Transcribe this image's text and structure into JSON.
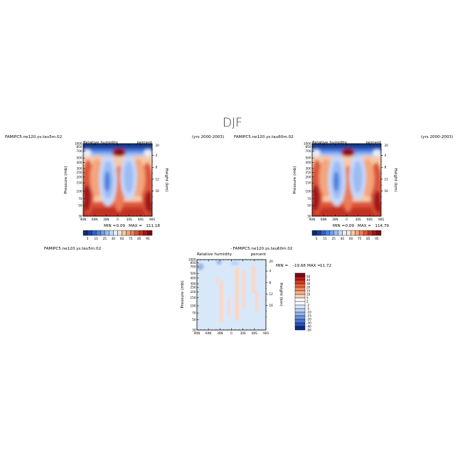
{
  "figure": {
    "title": "DJF"
  },
  "chart_data": [
    {
      "type": "heatmap",
      "id": "case1",
      "case_label": "FAMIPC5.ne120.ys.tau5m.02",
      "period": "(yrs 2000-2003)",
      "title": "Relative humidity",
      "units": "percent",
      "ylabel": "Pressure (mb)",
      "ylabel_right": "Height (km)",
      "x_ticks": [
        "90N",
        "60N",
        "30N",
        "0",
        "30S",
        "60S",
        "90S"
      ],
      "y_ticks": [
        "1000",
        "850",
        "700",
        "500",
        "400",
        "300",
        "250",
        "200",
        "150",
        "100",
        "70",
        "50",
        "30"
      ],
      "y_ticks_right": [
        "16",
        "12",
        "8",
        "4"
      ],
      "y_ticks_right_hidden": [
        "20"
      ],
      "xlim": [
        -90,
        90
      ],
      "ylim_mb": [
        1000,
        30
      ],
      "min_label": "MIN =",
      "min": "0.09",
      "max_label": "MAX =",
      "max": "111.18",
      "colorbar_levels": [
        "5",
        "15",
        "25",
        "40",
        "60",
        "75",
        "85",
        "95"
      ]
    },
    {
      "type": "heatmap",
      "id": "case2",
      "case_label": "FAMIPC5.ne120.ys.tau60m.02",
      "period": "(yrs 2000-2003)",
      "title": "Relative humidity",
      "units": "percent",
      "ylabel": "Pressure (mb)",
      "ylabel_right": "Height (km)",
      "x_ticks": [
        "90N",
        "60N",
        "30N",
        "0",
        "30S",
        "60S",
        "90S"
      ],
      "y_ticks": [
        "1000",
        "850",
        "700",
        "500",
        "400",
        "300",
        "250",
        "200",
        "150",
        "100",
        "70",
        "50",
        "30"
      ],
      "y_ticks_right": [
        "16",
        "12",
        "8",
        "4"
      ],
      "y_ticks_right_hidden": [
        "20"
      ],
      "xlim": [
        -90,
        90
      ],
      "ylim_mb": [
        1000,
        30
      ],
      "min_label": "MIN =",
      "min": "0.09",
      "max_label": "MAX =",
      "max": "114.79",
      "colorbar_levels": [
        "5",
        "15",
        "25",
        "40",
        "60",
        "75",
        "85",
        "95"
      ]
    },
    {
      "type": "heatmap",
      "id": "diff",
      "case_label": "FAMIPC5.ne120.ys.tau5m.02",
      "diff_label": "- FAMIPC5.ne120.ys.tau60m.02",
      "title": "Relative humidity",
      "units": "percent",
      "ylabel": "Pressure (mb)",
      "ylabel_right": "Height (km)",
      "x_ticks": [
        "90N",
        "60N",
        "30N",
        "0",
        "30S",
        "60S",
        "90S"
      ],
      "y_ticks": [
        "1000",
        "850",
        "700",
        "500",
        "400",
        "300",
        "250",
        "200",
        "150",
        "100",
        "70",
        "50",
        "30"
      ],
      "y_ticks_right": [
        "16",
        "12",
        "8",
        "4"
      ],
      "y_ticks_right_hidden": [
        "20"
      ],
      "xlim": [
        -90,
        90
      ],
      "ylim_mb": [
        1000,
        30
      ],
      "min_label": "MIN =",
      "min": "-19.68",
      "max_label": "MAX =",
      "max": "11.72",
      "colorbar_levels": [
        "50",
        "40",
        "30",
        "20",
        "15",
        "10",
        "5",
        "2",
        "-2",
        "-5",
        "-10",
        "-15",
        "-20",
        "-30",
        "-40",
        "-50"
      ]
    }
  ],
  "colors": {
    "abs_scale": [
      "#08306b",
      "#1f3f9e",
      "#2f5fc8",
      "#4a7fe0",
      "#6d9cec",
      "#9cbcf4",
      "#c6d8f8",
      "#e7eefa",
      "#fbe6d6",
      "#f8c9a6",
      "#f3a57b",
      "#ea7c56",
      "#dc543a",
      "#c23224",
      "#a3161a",
      "#7f0b12"
    ],
    "diff_scale": [
      "#7f0b12",
      "#b51d1d",
      "#d63b26",
      "#e9603a",
      "#f28a5a",
      "#f7b28b",
      "#fbd5bd",
      "#ffffff",
      "#ffffff",
      "#d8e8fb",
      "#b7d1f6",
      "#92b5ee",
      "#6e97e2",
      "#4a74d0",
      "#2c50b6",
      "#0d2a8a"
    ]
  }
}
